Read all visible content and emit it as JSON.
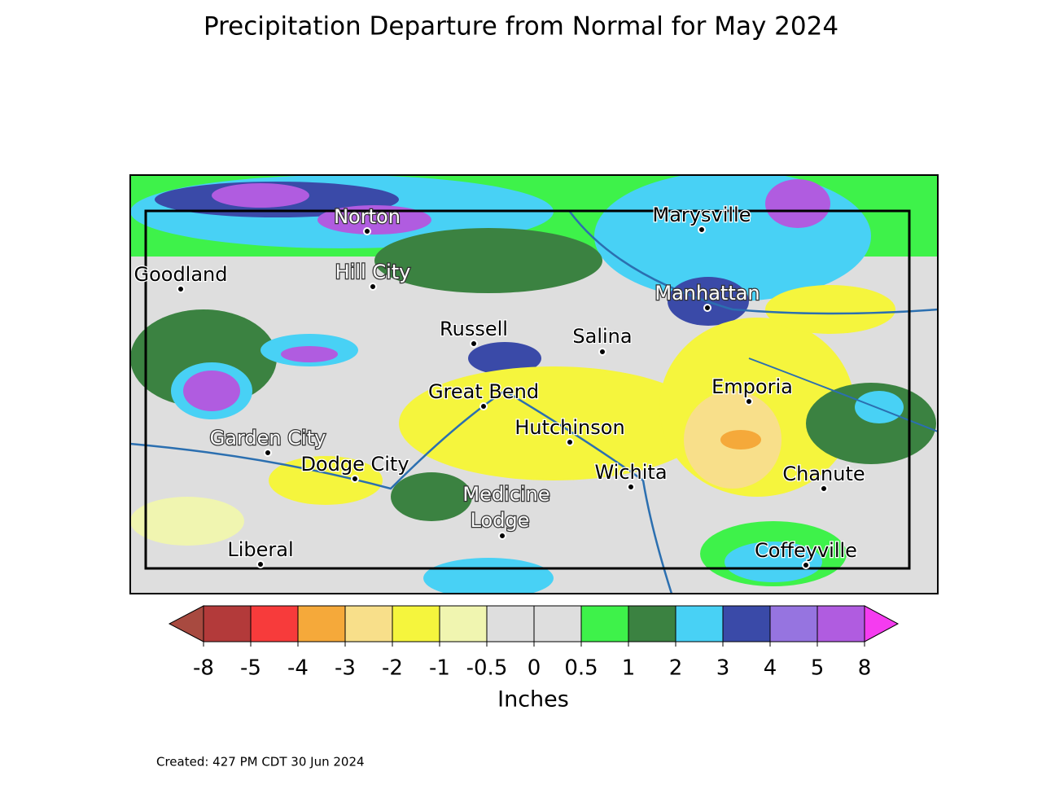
{
  "title": "Precipitation Departure from Normal for May 2024",
  "cities": [
    {
      "label": "Norton"
    },
    {
      "label": "Marysville"
    },
    {
      "label": "Goodland"
    },
    {
      "label": "Hill City"
    },
    {
      "label": "Manhattan"
    },
    {
      "label": "Russell"
    },
    {
      "label": "Salina"
    },
    {
      "label": "Great Bend"
    },
    {
      "label": "Emporia"
    },
    {
      "label": "Hutchinson"
    },
    {
      "label": "Garden City"
    },
    {
      "label": "Dodge City"
    },
    {
      "label": "Wichita"
    },
    {
      "label": "Chanute"
    },
    {
      "label": [
        "Medicine",
        "Lodge"
      ]
    },
    {
      "label": "Liberal"
    },
    {
      "label": "Coffeyville"
    }
  ],
  "colorbar": {
    "ticks": [
      -8,
      -5,
      -4,
      -3,
      -2,
      -1,
      -0.5,
      0,
      0.5,
      1,
      2,
      3,
      4,
      5,
      8
    ],
    "colors": [
      "#b33a3a",
      "#f73b3b",
      "#f5a93a",
      "#f8df8a",
      "#f5f53d",
      "#f0f5b0",
      "#dedede",
      "#dedede",
      "#3ef24a",
      "#3b8241",
      "#48d1f5",
      "#3a4aa8",
      "#9674e0",
      "#b05ce0"
    ],
    "under_color": "#a84a40",
    "over_color": "#f53cf0",
    "label": "Inches"
  },
  "footer": "Created: 427 PM CDT 30 Jun 2024"
}
